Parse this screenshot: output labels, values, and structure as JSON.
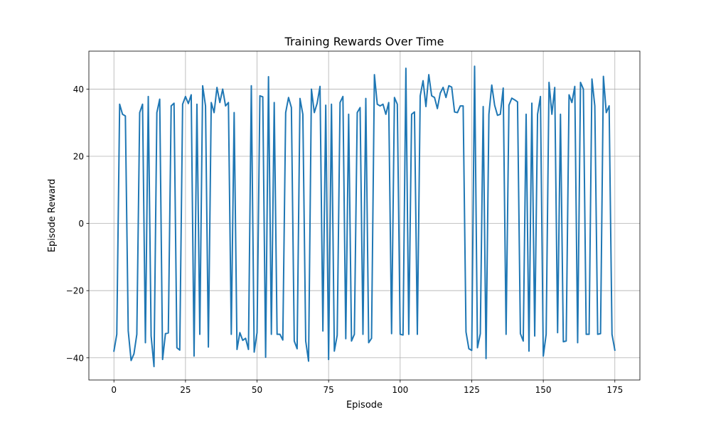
{
  "chart_data": {
    "type": "line",
    "title": "Training Rewards Over Time",
    "xlabel": "Episode",
    "ylabel": "Episode Reward",
    "xlim": [
      -8.75,
      183.75
    ],
    "ylim": [
      -46.6,
      51.3
    ],
    "xticks": [
      0,
      25,
      50,
      75,
      100,
      125,
      150,
      175
    ],
    "yticks": [
      -40,
      -20,
      0,
      20,
      40
    ],
    "grid": true,
    "series": [
      {
        "color": "#1f77b4",
        "x": [
          0,
          1,
          2,
          3,
          4,
          5,
          6,
          7,
          8,
          9,
          10,
          11,
          12,
          13,
          14,
          15,
          16,
          17,
          18,
          19,
          20,
          21,
          22,
          23,
          24,
          25,
          26,
          27,
          28,
          29,
          30,
          31,
          32,
          33,
          34,
          35,
          36,
          37,
          38,
          39,
          40,
          41,
          42,
          43,
          44,
          45,
          46,
          47,
          48,
          49,
          50,
          51,
          52,
          53,
          54,
          55,
          56,
          57,
          58,
          59,
          60,
          61,
          62,
          63,
          64,
          65,
          66,
          67,
          68,
          69,
          70,
          71,
          72,
          73,
          74,
          75,
          76,
          77,
          78,
          79,
          80,
          81,
          82,
          83,
          84,
          85,
          86,
          87,
          88,
          89,
          90,
          91,
          92,
          93,
          94,
          95,
          96,
          97,
          98,
          99,
          100,
          101,
          102,
          103,
          104,
          105,
          106,
          107,
          108,
          109,
          110,
          111,
          112,
          113,
          114,
          115,
          116,
          117,
          118,
          119,
          120,
          121,
          122,
          123,
          124,
          125,
          126,
          127,
          128,
          129,
          130,
          131,
          132,
          133,
          134,
          135,
          136,
          137,
          138,
          139,
          140,
          141,
          142,
          143,
          144,
          145,
          146,
          147,
          148,
          149,
          150,
          151,
          152,
          153,
          154,
          155,
          156,
          157,
          158,
          159,
          160,
          161,
          162,
          163,
          164,
          165,
          166,
          167,
          168,
          169,
          170,
          171,
          172,
          173,
          174,
          175
        ],
        "values": [
          -38,
          -33,
          35.5,
          32.5,
          32,
          -32,
          -40.8,
          -38.8,
          -33,
          33,
          35.5,
          -35.5,
          37.8,
          -33.5,
          -42.6,
          33,
          37,
          -40.5,
          -32.8,
          -32.6,
          35,
          35.8,
          -37,
          -37.7,
          35.5,
          37.8,
          35.7,
          38.3,
          -39.5,
          35.5,
          -33,
          41,
          35,
          -36.8,
          36,
          33,
          40.5,
          36,
          40,
          35,
          36,
          -33,
          33,
          -37.5,
          -32.5,
          -34.8,
          -34.2,
          -37.5,
          41,
          -38.3,
          -32.5,
          38,
          37.7,
          -39.8,
          43.7,
          -33,
          36,
          -33,
          -33,
          -34.7,
          33,
          37.5,
          34.5,
          -35,
          -37.3,
          37.2,
          32.5,
          -35,
          -41,
          40,
          33,
          35.8,
          40.8,
          -32,
          35.2,
          -40.5,
          35.5,
          -38,
          -33.3,
          36,
          37.8,
          -34.3,
          32.5,
          -35,
          -33,
          33,
          34.5,
          -33,
          37.2,
          -35.5,
          -34.2,
          44.3,
          35.5,
          35,
          35.5,
          32.5,
          36,
          -32.8,
          37.5,
          35.5,
          -33,
          -33.2,
          46.2,
          -33,
          32.5,
          33.2,
          -33,
          38,
          42.5,
          34.8,
          44.3,
          38,
          37.5,
          34.2,
          38.8,
          40.5,
          37.5,
          41,
          40.6,
          33.2,
          33,
          35,
          35,
          -32.3,
          -37.3,
          -37.8,
          46.8,
          -37,
          -32.8,
          34.8,
          -40.2,
          32.5,
          41.2,
          35.2,
          32.2,
          32.5,
          40.3,
          -33,
          35.2,
          37.3,
          36.8,
          36.2,
          -32.8,
          -35,
          32.5,
          -38,
          35.8,
          -33.5,
          32.5,
          37.8,
          -39.5,
          -33,
          42,
          32.5,
          40.5,
          -32.5,
          32.5,
          -35.2,
          -35,
          38.3,
          36,
          40.8,
          -35.5,
          42,
          40,
          -33,
          -33,
          43,
          35,
          -33,
          -32.8,
          43.8,
          33,
          35,
          -33,
          -37.7
        ]
      }
    ]
  }
}
